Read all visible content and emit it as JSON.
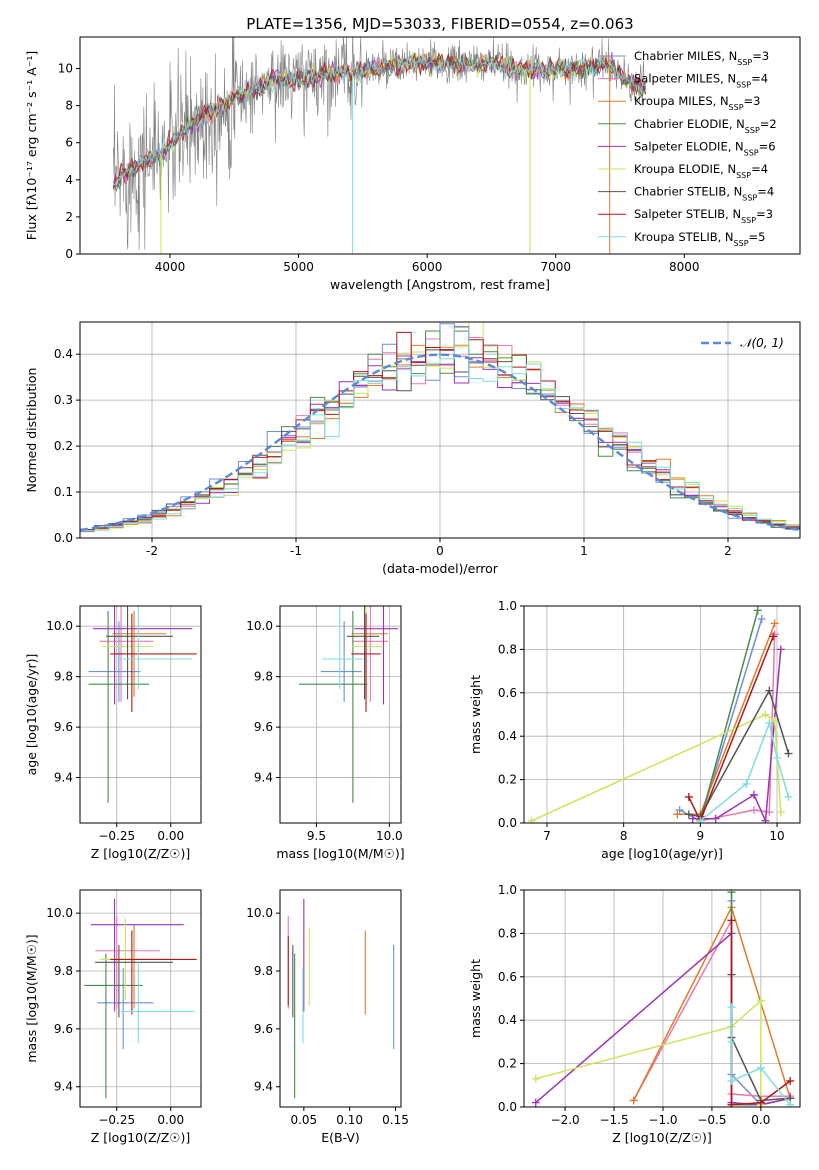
{
  "figure_title": "PLATE=1356, MJD=53033, FIBERID=0554, z=0.063",
  "colors": {
    "chabrier_miles": "#6f8fd8",
    "salpeter_miles": "#e879b0",
    "kroupa_miles": "#e07b29",
    "chabrier_elodie": "#4a8c4f",
    "salpeter_elodie": "#9b34b5",
    "kroupa_elodie": "#c9e65a",
    "chabrier_stelib": "#555555",
    "salpeter_stelib": "#b01818",
    "kroupa_stelib": "#7fdde2",
    "data": "#808080",
    "gaussian": "#5b8ad6",
    "grid": "#b0b0b0"
  },
  "chart_data": [
    {
      "id": "spectrum",
      "type": "line",
      "xlabel": "wavelength [Angstrom, rest frame]",
      "ylabel": "Flux [fλ10⁻¹⁷ erg cm⁻² s⁻¹ A⁻¹]",
      "xlim": [
        3300,
        8900
      ],
      "ylim": [
        0,
        11.7
      ],
      "xticks": [
        4000,
        5000,
        6000,
        7000,
        8000
      ],
      "yticks": [
        0,
        2,
        4,
        6,
        8,
        10
      ],
      "grid": false,
      "legend_position": "right",
      "continuum": {
        "x": [
          3550,
          3650,
          3800,
          3950,
          4100,
          4300,
          4500,
          4800,
          5000,
          5200,
          5500,
          5800,
          6000,
          6300,
          6500,
          6700,
          7000,
          7200,
          7400,
          7600
        ],
        "y": [
          3.6,
          4.3,
          5.0,
          5.5,
          6.6,
          7.6,
          8.4,
          9.4,
          9.4,
          9.7,
          9.9,
          10.2,
          10.3,
          10.2,
          10.3,
          10.0,
          9.9,
          10.0,
          10.3,
          9.0
        ]
      },
      "legend": [
        "Chabrier MILES, N_SSP=3",
        "Salpeter MILES, N_SSP=4",
        "Kroupa MILES, N_SSP=3",
        "Chabrier ELODIE, N_SSP=2",
        "Salpeter ELODIE, N_SSP=6",
        "Kroupa ELODIE, N_SSP=4",
        "Chabrier STELIB, N_SSP=4",
        "Salpeter STELIB, N_SSP=3",
        "Kroupa STELIB, N_SSP=5"
      ]
    },
    {
      "id": "residuals",
      "type": "histogram",
      "xlabel": "(data-model)/error",
      "ylabel": "Normed distribution",
      "xlim": [
        -2.5,
        2.5
      ],
      "ylim": [
        0,
        0.47
      ],
      "xticks": [
        -2,
        -1,
        0,
        1,
        2
      ],
      "yticks": [
        0.0,
        0.1,
        0.2,
        0.3,
        0.4
      ],
      "grid": true,
      "bin_width": 0.1,
      "legend": [
        "𝒩(0, 1)"
      ],
      "gaussian": {
        "mean": 0,
        "sigma": 1
      }
    },
    {
      "id": "age_vs_Z",
      "type": "errorbar",
      "xlabel": "Z [log10(Z/Z☉)]",
      "ylabel": "age  [log10(age/yr)]",
      "xlim": [
        -0.42,
        0.14
      ],
      "ylim": [
        9.22,
        10.08
      ],
      "xticks": [
        -0.25,
        0.0
      ],
      "xtick_labels": [
        "−0.25",
        "0.00"
      ],
      "yticks": [
        9.4,
        9.6,
        9.8,
        10.0
      ],
      "grid": true,
      "points": [
        {
          "model": "chabrier_miles",
          "x": -0.24,
          "xerr": [
            0.14,
            0.1
          ],
          "y": 9.82,
          "yerr": [
            0.12,
            0.2
          ]
        },
        {
          "model": "salpeter_miles",
          "x": -0.23,
          "xerr": [
            0.1,
            0.15
          ],
          "y": 9.94,
          "yerr": [
            0.24,
            0.14
          ]
        },
        {
          "model": "kroupa_miles",
          "x": -0.17,
          "xerr": [
            0.1,
            0.15
          ],
          "y": 9.97,
          "yerr": [
            0.25,
            0.09
          ]
        },
        {
          "model": "chabrier_elodie",
          "x": -0.29,
          "xerr": [
            0.09,
            0.19
          ],
          "y": 9.77,
          "yerr": [
            0.47,
            0.29
          ]
        },
        {
          "model": "salpeter_elodie",
          "x": -0.26,
          "xerr": [
            0.1,
            0.36
          ],
          "y": 9.99,
          "yerr": [
            0.3,
            0.09
          ]
        },
        {
          "model": "kroupa_elodie",
          "x": -0.2,
          "xerr": [
            0.12,
            0.12
          ],
          "y": 9.92,
          "yerr": [
            0.12,
            0.16
          ]
        },
        {
          "model": "chabrier_stelib",
          "x": -0.2,
          "xerr": [
            0.1,
            0.21
          ],
          "y": 9.96,
          "yerr": [
            0.25,
            0.12
          ]
        },
        {
          "model": "salpeter_stelib",
          "x": -0.18,
          "xerr": [
            0.1,
            0.3
          ],
          "y": 9.89,
          "yerr": [
            0.23,
            0.16
          ]
        },
        {
          "model": "kroupa_stelib",
          "x": -0.15,
          "xerr": [
            0.1,
            0.25
          ],
          "y": 9.87,
          "yerr": [
            0.12,
            0.21
          ]
        }
      ]
    },
    {
      "id": "age_vs_mass",
      "type": "errorbar",
      "xlabel": "mass [log10(M/M☉)]",
      "ylim": [
        9.22,
        10.08
      ],
      "xlim": [
        9.25,
        10.08
      ],
      "xticks": [
        9.5,
        10.0
      ],
      "xtick_labels": [
        "9.5",
        "10.0"
      ],
      "yticks": [
        9.4,
        9.6,
        9.8,
        10.0
      ],
      "grid": true,
      "points": [
        {
          "model": "chabrier_miles",
          "x": 9.69,
          "xerr": [
            0.16,
            0.12
          ],
          "y": 9.82,
          "yerr": [
            0.12,
            0.2
          ]
        },
        {
          "model": "salpeter_miles",
          "x": 9.87,
          "xerr": [
            0.12,
            0.12
          ],
          "y": 9.94,
          "yerr": [
            0.24,
            0.14
          ]
        },
        {
          "model": "kroupa_miles",
          "x": 9.84,
          "xerr": [
            0.1,
            0.15
          ],
          "y": 9.97,
          "yerr": [
            0.25,
            0.09
          ]
        },
        {
          "model": "chabrier_elodie",
          "x": 9.75,
          "xerr": [
            0.37,
            0.1
          ],
          "y": 9.77,
          "yerr": [
            0.47,
            0.29
          ]
        },
        {
          "model": "salpeter_elodie",
          "x": 9.96,
          "xerr": [
            0.2,
            0.1
          ],
          "y": 9.99,
          "yerr": [
            0.3,
            0.09
          ]
        },
        {
          "model": "kroupa_elodie",
          "x": 9.84,
          "xerr": [
            0.1,
            0.12
          ],
          "y": 9.92,
          "yerr": [
            0.12,
            0.16
          ]
        },
        {
          "model": "chabrier_stelib",
          "x": 9.83,
          "xerr": [
            0.12,
            0.1
          ],
          "y": 9.96,
          "yerr": [
            0.25,
            0.12
          ]
        },
        {
          "model": "salpeter_stelib",
          "x": 9.84,
          "xerr": [
            0.1,
            0.1
          ],
          "y": 9.89,
          "yerr": [
            0.23,
            0.16
          ]
        },
        {
          "model": "kroupa_stelib",
          "x": 9.66,
          "xerr": [
            0.12,
            0.16
          ],
          "y": 9.87,
          "yerr": [
            0.12,
            0.21
          ]
        }
      ]
    },
    {
      "id": "weight_vs_age",
      "type": "line",
      "xlabel": "age  [log10(age/yr)]",
      "ylabel": "mass weight",
      "xlim": [
        6.7,
        10.3
      ],
      "ylim": [
        0,
        1.0
      ],
      "xticks": [
        7,
        8,
        9,
        10
      ],
      "yticks": [
        0.0,
        0.2,
        0.4,
        0.6,
        0.8,
        1.0
      ],
      "grid": true,
      "series": [
        {
          "model": "chabrier_miles",
          "x": [
            8.73,
            9.0,
            9.8
          ],
          "y": [
            0.06,
            0.01,
            0.94
          ]
        },
        {
          "model": "salpeter_miles",
          "x": [
            9.0,
            9.7,
            9.9,
            9.97
          ],
          "y": [
            0.01,
            0.06,
            0.05,
            0.87
          ]
        },
        {
          "model": "kroupa_miles",
          "x": [
            8.7,
            9.0,
            9.97
          ],
          "y": [
            0.04,
            0.04,
            0.92
          ]
        },
        {
          "model": "chabrier_elodie",
          "x": [
            9.0,
            9.75
          ],
          "y": [
            0.01,
            0.98
          ]
        },
        {
          "model": "salpeter_elodie",
          "x": [
            8.9,
            9.0,
            9.2,
            9.7,
            9.85,
            10.05
          ],
          "y": [
            0.02,
            0.02,
            0.02,
            0.13,
            0.01,
            0.8
          ]
        },
        {
          "model": "kroupa_elodie",
          "x": [
            6.8,
            9.85,
            9.97,
            10.05
          ],
          "y": [
            0.01,
            0.5,
            0.47,
            0.05
          ]
        },
        {
          "model": "chabrier_stelib",
          "x": [
            8.85,
            9.0,
            9.9,
            10.15
          ],
          "y": [
            0.04,
            0.03,
            0.61,
            0.32
          ]
        },
        {
          "model": "salpeter_stelib",
          "x": [
            8.85,
            9.0,
            9.95
          ],
          "y": [
            0.12,
            0.01,
            0.86
          ]
        },
        {
          "model": "kroupa_stelib",
          "x": [
            9.0,
            9.6,
            9.9,
            10.0,
            10.15
          ],
          "y": [
            0.01,
            0.18,
            0.46,
            0.3,
            0.12
          ]
        }
      ]
    },
    {
      "id": "mass_vs_Z",
      "type": "errorbar",
      "xlabel": "Z [log10(Z/Z☉)]",
      "ylabel": "mass [log10(M/M☉)]",
      "xlim": [
        -0.42,
        0.14
      ],
      "ylim": [
        9.33,
        10.08
      ],
      "xticks": [
        -0.25,
        0.0
      ],
      "xtick_labels": [
        "−0.25",
        "0.00"
      ],
      "yticks": [
        9.4,
        9.6,
        9.8,
        10.0
      ],
      "grid": true,
      "points": [
        {
          "model": "chabrier_miles",
          "x": -0.22,
          "xerr": [
            0.12,
            0.14
          ],
          "y": 9.69,
          "yerr": [
            0.16,
            0.12
          ]
        },
        {
          "model": "salpeter_miles",
          "x": -0.25,
          "xerr": [
            0.1,
            0.2
          ],
          "y": 9.87,
          "yerr": [
            0.2,
            0.12
          ]
        },
        {
          "model": "kroupa_miles",
          "x": -0.17,
          "xerr": [
            0.12,
            0.15
          ],
          "y": 9.84,
          "yerr": [
            0.17,
            0.12
          ]
        },
        {
          "model": "chabrier_elodie",
          "x": -0.3,
          "xerr": [
            0.1,
            0.17
          ],
          "y": 9.75,
          "yerr": [
            0.39,
            0.11
          ]
        },
        {
          "model": "salpeter_elodie",
          "x": -0.26,
          "xerr": [
            0.11,
            0.32
          ],
          "y": 9.96,
          "yerr": [
            0.3,
            0.09
          ]
        },
        {
          "model": "kroupa_elodie",
          "x": -0.21,
          "xerr": [
            0.12,
            0.15
          ],
          "y": 9.84,
          "yerr": [
            0.14,
            0.14
          ]
        },
        {
          "model": "chabrier_stelib",
          "x": -0.24,
          "xerr": [
            0.11,
            0.25
          ],
          "y": 9.83,
          "yerr": [
            0.19,
            0.06
          ]
        },
        {
          "model": "salpeter_stelib",
          "x": -0.18,
          "xerr": [
            0.1,
            0.3
          ],
          "y": 9.84,
          "yerr": [
            0.19,
            0.1
          ]
        },
        {
          "model": "kroupa_stelib",
          "x": -0.15,
          "xerr": [
            0.08,
            0.26
          ],
          "y": 9.66,
          "yerr": [
            0.11,
            0.17
          ]
        }
      ]
    },
    {
      "id": "mass_vs_ebv",
      "type": "errorbar",
      "xlabel": "E(B-V)",
      "xlim": [
        0.024,
        0.156
      ],
      "ylim": [
        9.33,
        10.08
      ],
      "xticks": [
        0.05,
        0.1,
        0.15
      ],
      "xtick_labels": [
        "0.05",
        "0.10",
        "0.15"
      ],
      "yticks": [
        9.4,
        9.6,
        9.8,
        10.0
      ],
      "grid": false,
      "points": [
        {
          "model": "chabrier_miles",
          "x": 0.148,
          "y": 9.69,
          "yerr": [
            0.16,
            0.2
          ]
        },
        {
          "model": "salpeter_miles",
          "x": 0.033,
          "y": 9.87,
          "yerr": [
            0.2,
            0.12
          ]
        },
        {
          "model": "kroupa_miles",
          "x": 0.117,
          "y": 9.84,
          "yerr": [
            0.19,
            0.1
          ]
        },
        {
          "model": "chabrier_elodie",
          "x": 0.04,
          "y": 9.75,
          "yerr": [
            0.39,
            0.11
          ]
        },
        {
          "model": "salpeter_elodie",
          "x": 0.05,
          "y": 9.96,
          "yerr": [
            0.3,
            0.09
          ]
        },
        {
          "model": "kroupa_elodie",
          "x": 0.056,
          "y": 9.84,
          "yerr": [
            0.16,
            0.11
          ]
        },
        {
          "model": "chabrier_stelib",
          "x": 0.038,
          "y": 9.83,
          "yerr": [
            0.19,
            0.06
          ]
        },
        {
          "model": "salpeter_stelib",
          "x": 0.033,
          "y": 9.84,
          "yerr": [
            0.16,
            0.08
          ]
        },
        {
          "model": "kroupa_stelib",
          "x": 0.049,
          "y": 9.66,
          "yerr": [
            0.11,
            0.15
          ]
        }
      ]
    },
    {
      "id": "weight_vs_Z",
      "type": "line",
      "xlabel": "Z [log10(Z/Z☉)]",
      "ylabel": "mass weight",
      "xlim": [
        -2.42,
        0.4
      ],
      "ylim": [
        0,
        1.0
      ],
      "xticks": [
        -2.0,
        -1.5,
        -1.0,
        -0.5,
        0.0
      ],
      "xtick_labels": [
        "−2.0",
        "−1.5",
        "−1.0",
        "−0.5",
        "0.0"
      ],
      "yticks": [
        0.0,
        0.2,
        0.4,
        0.6,
        0.8,
        1.0
      ],
      "grid": true,
      "series": [
        {
          "model": "chabrier_miles",
          "x": [
            -0.3,
            -0.3,
            0.0,
            0.3
          ],
          "y": [
            0.95,
            0.15,
            0.01,
            0.04
          ]
        },
        {
          "model": "salpeter_miles",
          "x": [
            -1.3,
            -0.3,
            -0.3,
            0.0,
            0.3
          ],
          "y": [
            0.03,
            0.86,
            0.06,
            0.05,
            0.05
          ]
        },
        {
          "model": "kroupa_miles",
          "x": [
            -1.3,
            -0.3,
            0.3
          ],
          "y": [
            0.03,
            0.92,
            0.04
          ]
        },
        {
          "model": "chabrier_elodie",
          "x": [
            -0.3,
            -0.3,
            0.0
          ],
          "y": [
            0.99,
            0.01,
            0.01
          ]
        },
        {
          "model": "salpeter_elodie",
          "x": [
            -2.3,
            -0.3,
            -0.3,
            0.0,
            0.3
          ],
          "y": [
            0.02,
            0.8,
            0.02,
            0.01,
            0.04
          ]
        },
        {
          "model": "kroupa_elodie",
          "x": [
            -2.3,
            -0.3,
            0.0,
            0.0
          ],
          "y": [
            0.13,
            0.37,
            0.49,
            0.01
          ]
        },
        {
          "model": "chabrier_stelib",
          "x": [
            -0.3,
            -0.3,
            0.0,
            0.3
          ],
          "y": [
            0.61,
            0.32,
            0.03,
            0.04
          ]
        },
        {
          "model": "salpeter_stelib",
          "x": [
            -0.3,
            -0.3,
            0.0,
            0.3
          ],
          "y": [
            0.86,
            0.01,
            0.02,
            0.12
          ]
        },
        {
          "model": "kroupa_stelib",
          "x": [
            -0.3,
            -0.3,
            -0.3,
            0.0,
            0.3
          ],
          "y": [
            0.46,
            0.3,
            0.12,
            0.18,
            0.01
          ]
        }
      ]
    }
  ]
}
